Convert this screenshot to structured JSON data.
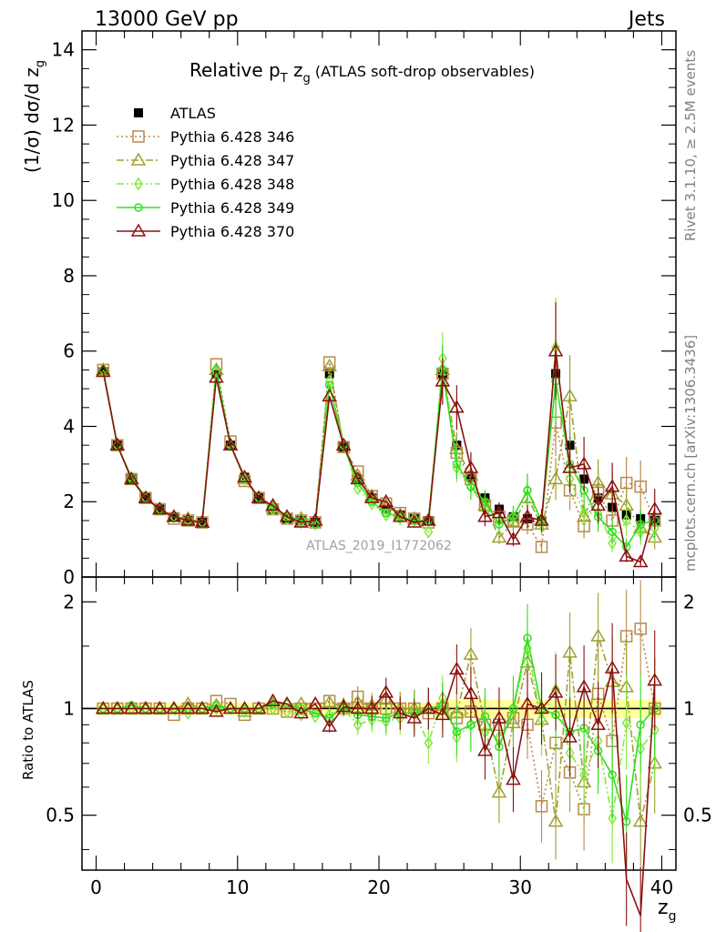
{
  "header": {
    "left": "13000 GeV pp",
    "right": "Jets"
  },
  "side_labels": {
    "rivet": "Rivet 3.1.10, ≥ 2.5M events",
    "mcplots": "mcplots.cern.ch [arXiv:1306.3436]"
  },
  "watermark": "ATLAS_2019_I1772062",
  "colors": {
    "ATLAS": "#000000",
    "p346": "#b88a4a",
    "p347": "#a0a030",
    "p348": "#88e840",
    "p349": "#30e020",
    "p370": "#8b1010",
    "band": "#ffff99"
  },
  "chart_data": [
    {
      "type": "line",
      "panel": "main",
      "title_main": "Relative p",
      "title_sub1": "T",
      "title_mid": " z",
      "title_sub2": "g",
      "title_tail": " (ATLAS soft-drop observables)",
      "ylabel": "(1/σ) dσ/d z",
      "ylabel_sub": "g",
      "xlim": [
        -1,
        41
      ],
      "ylim": [
        0,
        14.5
      ],
      "yticks": [
        "0",
        "2",
        "4",
        "6",
        "8",
        "10",
        "12",
        "14"
      ],
      "x": [
        0.5,
        1.5,
        2.5,
        3.5,
        4.5,
        5.5,
        6.5,
        7.5,
        8.5,
        9.5,
        10.5,
        11.5,
        12.5,
        13.5,
        14.5,
        15.5,
        16.5,
        17.5,
        18.5,
        19.5,
        20.5,
        21.5,
        22.5,
        23.5,
        24.5,
        25.5,
        26.5,
        27.5,
        28.5,
        29.5,
        30.5,
        31.5,
        32.5,
        33.5,
        34.5,
        35.5,
        36.5,
        37.5,
        38.5,
        39.5
      ],
      "series": [
        {
          "name": "ATLAS",
          "key": "ATLAS",
          "marker": "filled-square",
          "values": [
            5.45,
            3.5,
            2.6,
            2.1,
            1.8,
            1.6,
            1.5,
            1.45,
            5.4,
            3.5,
            2.65,
            2.1,
            1.8,
            1.55,
            1.5,
            1.45,
            5.4,
            3.45,
            2.6,
            2.1,
            1.8,
            1.65,
            1.55,
            1.5,
            5.4,
            3.5,
            2.65,
            2.1,
            1.8,
            1.6,
            1.55,
            1.5,
            5.4,
            3.5,
            2.6,
            2.1,
            1.85,
            1.65,
            1.55,
            1.5
          ]
        },
        {
          "name": "Pythia 6.428 346",
          "key": "p346",
          "marker": "open-square",
          "dash": "2,3",
          "values": [
            5.5,
            3.5,
            2.6,
            2.1,
            1.8,
            1.55,
            1.5,
            1.45,
            5.65,
            3.6,
            2.55,
            2.1,
            1.8,
            1.55,
            1.5,
            1.45,
            5.7,
            3.45,
            2.8,
            2.15,
            1.95,
            1.7,
            1.55,
            1.45,
            5.4,
            3.3,
            2.6,
            1.9,
            1.6,
            1.5,
            1.4,
            0.8,
            4.1,
            2.3,
            1.35,
            2.3,
            1.5,
            2.5,
            2.4,
            1.5
          ]
        },
        {
          "name": "Pythia 6.428 347",
          "key": "p347",
          "marker": "open-triangle",
          "dash": "8,3,2,3",
          "values": [
            5.5,
            3.5,
            2.6,
            2.1,
            1.8,
            1.6,
            1.55,
            1.45,
            5.5,
            3.5,
            2.6,
            2.1,
            1.85,
            1.6,
            1.55,
            1.5,
            5.6,
            3.5,
            2.7,
            2.15,
            1.9,
            1.65,
            1.55,
            1.5,
            5.5,
            3.4,
            2.7,
            1.9,
            1.05,
            1.45,
            2.1,
            1.4,
            2.6,
            4.8,
            1.6,
            2.5,
            2.2,
            1.9,
            1.3,
            1.05
          ]
        },
        {
          "name": "Pythia 6.428 348",
          "key": "p348",
          "marker": "open-diamond",
          "dash": "8,3,2,3,2,3",
          "values": [
            5.5,
            3.5,
            2.6,
            2.1,
            1.8,
            1.6,
            1.5,
            1.45,
            5.45,
            3.5,
            2.6,
            2.1,
            1.8,
            1.55,
            1.45,
            1.4,
            5.2,
            3.5,
            2.35,
            1.95,
            1.65,
            1.55,
            1.5,
            1.2,
            5.8,
            2.9,
            2.4,
            1.8,
            1.5,
            1.6,
            2.3,
            1.4,
            6.1,
            2.6,
            1.7,
            1.7,
            0.9,
            1.5,
            1.2,
            1.3
          ]
        },
        {
          "name": "Pythia 6.428 349",
          "key": "p349",
          "marker": "open-circle",
          "dash": "",
          "values": [
            5.5,
            3.5,
            2.65,
            2.1,
            1.8,
            1.6,
            1.5,
            1.45,
            5.5,
            3.5,
            2.65,
            2.1,
            1.85,
            1.6,
            1.5,
            1.4,
            5.1,
            3.5,
            2.5,
            2.0,
            1.7,
            1.6,
            1.5,
            1.5,
            5.5,
            3.0,
            2.4,
            2.0,
            1.4,
            1.6,
            2.3,
            1.5,
            5.2,
            3.0,
            2.3,
            1.6,
            1.2,
            0.8,
            1.4,
            1.5
          ]
        },
        {
          "name": "Pythia 6.428 370",
          "key": "p370",
          "marker": "open-triangle",
          "dash": "",
          "values": [
            5.45,
            3.5,
            2.6,
            2.1,
            1.8,
            1.6,
            1.5,
            1.45,
            5.3,
            3.5,
            2.65,
            2.1,
            1.9,
            1.6,
            1.45,
            1.5,
            4.8,
            3.5,
            2.6,
            2.1,
            2.0,
            1.6,
            1.45,
            1.5,
            5.2,
            4.5,
            2.9,
            1.6,
            1.7,
            1.0,
            1.6,
            1.5,
            6.0,
            2.9,
            3.0,
            1.9,
            2.4,
            0.55,
            0.4,
            1.8
          ]
        }
      ]
    },
    {
      "type": "line",
      "panel": "ratio",
      "ylabel": "Ratio to ATLAS",
      "xlabel": "z",
      "xlabel_sub": "g",
      "xlim": [
        -1,
        41
      ],
      "ylim": [
        0.35,
        2.35
      ],
      "yticks": [
        "0.5",
        "1",
        "2"
      ],
      "xticks": [
        "0",
        "10",
        "20",
        "30",
        "40"
      ],
      "x": [
        0.5,
        1.5,
        2.5,
        3.5,
        4.5,
        5.5,
        6.5,
        7.5,
        8.5,
        9.5,
        10.5,
        11.5,
        12.5,
        13.5,
        14.5,
        15.5,
        16.5,
        17.5,
        18.5,
        19.5,
        20.5,
        21.5,
        22.5,
        23.5,
        24.5,
        25.5,
        26.5,
        27.5,
        28.5,
        29.5,
        30.5,
        31.5,
        32.5,
        33.5,
        34.5,
        35.5,
        36.5,
        37.5,
        38.5,
        39.5
      ],
      "series": [
        {
          "name": "Pythia 6.428 346",
          "key": "p346",
          "marker": "open-square",
          "dash": "2,3",
          "values": [
            1.0,
            1.0,
            1.0,
            1.0,
            1.0,
            0.96,
            1.0,
            1.0,
            1.05,
            1.03,
            0.96,
            1.0,
            1.0,
            0.98,
            1.0,
            1.0,
            1.05,
            1.0,
            1.08,
            1.0,
            1.0,
            1.0,
            1.0,
            0.97,
            1.0,
            0.94,
            0.98,
            0.9,
            0.9,
            0.94,
            0.9,
            0.53,
            0.8,
            0.66,
            0.52,
            1.1,
            0.81,
            1.6,
            1.68,
            1.0
          ]
        },
        {
          "name": "Pythia 6.428 347",
          "key": "p347",
          "marker": "open-triangle",
          "dash": "8,3,2,3",
          "values": [
            1.0,
            1.0,
            1.0,
            1.0,
            1.0,
            1.0,
            1.03,
            1.0,
            1.02,
            1.0,
            0.98,
            1.0,
            1.03,
            1.03,
            1.03,
            1.03,
            1.04,
            1.02,
            1.04,
            1.02,
            1.06,
            1.0,
            1.0,
            1.0,
            1.02,
            0.97,
            1.42,
            0.9,
            0.58,
            0.91,
            1.35,
            0.93,
            0.48,
            1.44,
            0.62,
            1.6,
            1.19,
            1.15,
            0.48,
            0.7
          ]
        },
        {
          "name": "Pythia 6.428 348",
          "key": "p348",
          "marker": "open-diamond",
          "dash": "8,3,2,3,2,3",
          "values": [
            1.0,
            1.0,
            1.0,
            1.0,
            1.0,
            1.0,
            0.97,
            1.0,
            1.0,
            1.0,
            0.98,
            1.0,
            1.0,
            0.98,
            0.96,
            0.95,
            0.96,
            1.0,
            0.9,
            0.93,
            0.92,
            0.94,
            0.97,
            0.8,
            1.07,
            0.83,
            0.9,
            0.86,
            0.83,
            1.0,
            1.48,
            0.93,
            1.13,
            0.75,
            0.65,
            0.81,
            0.49,
            0.91,
            0.77,
            0.87
          ]
        },
        {
          "name": "Pythia 6.428 349",
          "key": "p349",
          "marker": "open-circle",
          "dash": "",
          "values": [
            1.0,
            1.0,
            1.02,
            1.0,
            1.0,
            1.0,
            1.0,
            1.0,
            1.02,
            1.0,
            1.0,
            1.0,
            1.03,
            1.03,
            1.0,
            0.97,
            0.94,
            1.01,
            0.96,
            0.95,
            0.94,
            0.97,
            0.97,
            1.0,
            1.02,
            0.86,
            0.9,
            0.95,
            0.78,
            1.0,
            1.58,
            1.0,
            0.96,
            0.86,
            0.88,
            0.76,
            0.65,
            0.48,
            0.9,
            1.0
          ]
        },
        {
          "name": "Pythia 6.428 370",
          "key": "p370",
          "marker": "open-triangle",
          "dash": "",
          "values": [
            1.0,
            1.0,
            1.0,
            1.0,
            1.0,
            1.0,
            1.0,
            1.0,
            0.98,
            1.0,
            1.0,
            1.0,
            1.05,
            1.03,
            0.97,
            1.03,
            0.89,
            1.01,
            1.0,
            1.0,
            1.11,
            0.97,
            0.94,
            1.0,
            0.96,
            1.29,
            1.1,
            0.76,
            0.94,
            0.63,
            1.03,
            1.0,
            1.11,
            0.83,
            1.15,
            0.9,
            1.3,
            0.33,
            0.26,
            1.2
          ]
        }
      ]
    }
  ]
}
